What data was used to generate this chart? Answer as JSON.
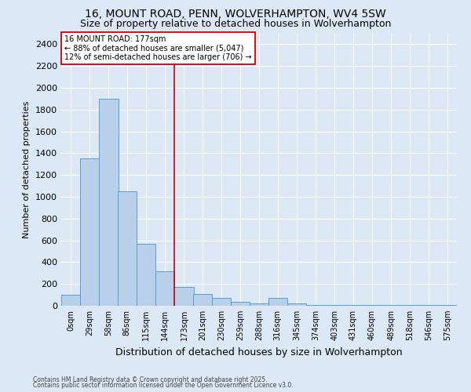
{
  "title": "16, MOUNT ROAD, PENN, WOLVERHAMPTON, WV4 5SW",
  "subtitle": "Size of property relative to detached houses in Wolverhampton",
  "xlabel": "Distribution of detached houses by size in Wolverhampton",
  "ylabel": "Number of detached properties",
  "footnote1": "Contains HM Land Registry data © Crown copyright and database right 2025.",
  "footnote2": "Contains public sector information licensed under the Open Government Licence v3.0.",
  "bins": [
    0,
    29,
    58,
    86,
    115,
    144,
    173,
    201,
    230,
    259,
    288,
    316,
    345,
    374,
    403,
    431,
    460,
    489,
    518,
    546,
    575
  ],
  "bar_values": [
    100,
    1350,
    1900,
    1050,
    570,
    320,
    175,
    110,
    75,
    35,
    20,
    70,
    20,
    10,
    5,
    5,
    5,
    5,
    5,
    5,
    5
  ],
  "bar_color": "#b8d0ea",
  "bar_edge_color": "#5b9bd5",
  "vline_x": 173,
  "vline_color": "#cc0000",
  "annotation_text": "16 MOUNT ROAD: 177sqm\n← 88% of detached houses are smaller (5,047)\n12% of semi-detached houses are larger (706) →",
  "annotation_box_color": "#cc0000",
  "ylim": [
    0,
    2500
  ],
  "yticks": [
    0,
    200,
    400,
    600,
    800,
    1000,
    1200,
    1400,
    1600,
    1800,
    2000,
    2200,
    2400
  ],
  "bg_color": "#dce8f5",
  "plot_bg_color": "#dce8f5",
  "grid_color": "#ffffff",
  "title_fontsize": 10,
  "subtitle_fontsize": 9,
  "ylabel_fontsize": 8,
  "xlabel_fontsize": 9,
  "ytick_fontsize": 8,
  "xtick_fontsize": 7
}
